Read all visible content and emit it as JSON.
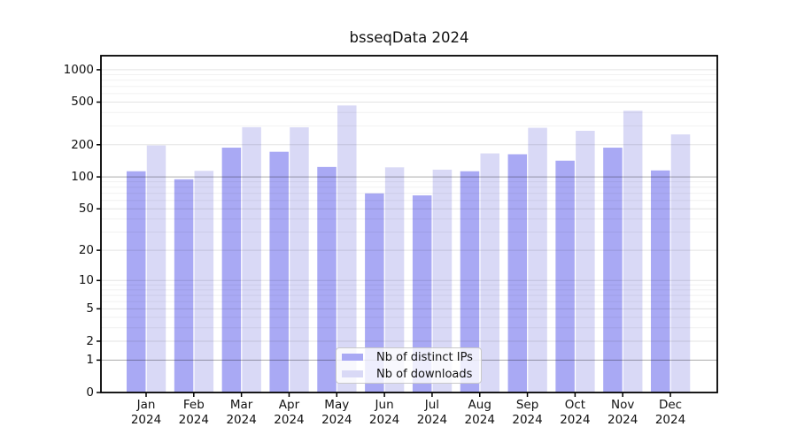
{
  "title": "bsseqData 2024",
  "chart_data": {
    "type": "bar",
    "title": "bsseqData 2024",
    "x_year": "2024",
    "categories": [
      "Jan",
      "Feb",
      "Mar",
      "Apr",
      "May",
      "Jun",
      "Jul",
      "Aug",
      "Sep",
      "Oct",
      "Nov",
      "Dec"
    ],
    "series": [
      {
        "name": "Nb of distinct IPs",
        "color": "#a9a9f4",
        "values": [
          113,
          95,
          188,
          172,
          124,
          70,
          67,
          113,
          163,
          142,
          188,
          115
        ]
      },
      {
        "name": "Nb of downloads",
        "color": "#d9d9f6",
        "values": [
          197,
          114,
          292,
          291,
          465,
          123,
          117,
          166,
          288,
          270,
          415,
          250
        ]
      }
    ],
    "yscale": "log1p",
    "ylim": [
      0,
      1352
    ],
    "yticks": [
      0,
      1,
      2,
      5,
      10,
      20,
      50,
      100,
      200,
      500,
      1000
    ],
    "minor_gridlines": [
      3,
      4,
      6,
      7,
      8,
      9,
      30,
      40,
      60,
      70,
      80,
      90,
      300,
      400,
      600,
      700,
      800,
      900
    ],
    "emphasized_gridlines": [
      1,
      100
    ],
    "grid": true,
    "legend_position": "lower center",
    "colors": {
      "spine": "#000000",
      "grid_major": "rgba(0,0,0,0.11)",
      "grid_minor": "rgba(0,0,0,0.055)",
      "grid_emphasized": "rgba(0,0,0,0.33)"
    }
  }
}
